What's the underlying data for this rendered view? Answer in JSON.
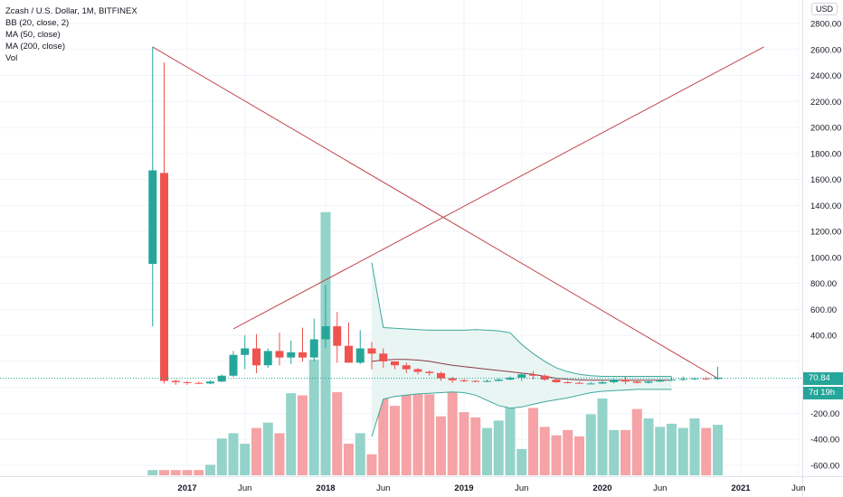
{
  "legend": {
    "symbol": "Zcash / U.S. Dollar, 1M, BITFINEX",
    "bb": "BB (20, close, 2)",
    "ma50": "MA (50, close)",
    "ma200": "MA (200, close)",
    "vol": "Vol"
  },
  "currency": "USD",
  "last_price": "70.84",
  "countdown": "7d 19h",
  "colors": {
    "up": "#26a69a",
    "down": "#ef5350",
    "vol_up": "#93d3ca",
    "vol_down": "#f5a3a6",
    "trendline": "#c2464e",
    "bb": "#3fa89c",
    "bb_fill": "#e8f5f3",
    "ma": "#8b3a44",
    "grid": "#f0f3fa",
    "price_line": "#26a69a"
  },
  "chart_data": {
    "type": "candlestick",
    "symbol": "ZECUSD",
    "exchange": "BITFINEX",
    "interval": "1M",
    "ylim": [
      -700,
      2900
    ],
    "y_ticks": [
      2800,
      2600,
      2400,
      2200,
      2000,
      1800,
      1600,
      1400,
      1200,
      1000,
      800,
      600,
      400,
      200,
      0,
      -200,
      -400,
      -600
    ],
    "y_tick_labels": [
      "2800.00",
      "2600.00",
      "2400.00",
      "2200.00",
      "2000.00",
      "1800.00",
      "1600.00",
      "1400.00",
      "1200.00",
      "1000.00",
      "800.00",
      "600.00",
      "400.00",
      "",
      "",
      "-200.00",
      "-400.00",
      "-600.00"
    ],
    "x_ticks": [
      "2017",
      "Jun",
      "2018",
      "Jun",
      "2019",
      "Jun",
      "2020",
      "Jun",
      "2021",
      "Jun"
    ],
    "x_tick_dates": [
      "2017-01",
      "2017-06",
      "2018-01",
      "2018-06",
      "2019-01",
      "2019-06",
      "2020-01",
      "2020-06",
      "2021-01",
      "2021-06"
    ],
    "months": [
      "2016-10",
      "2016-11",
      "2016-12",
      "2017-01",
      "2017-02",
      "2017-03",
      "2017-04",
      "2017-05",
      "2017-06",
      "2017-07",
      "2017-08",
      "2017-09",
      "2017-10",
      "2017-11",
      "2017-12",
      "2018-01",
      "2018-02",
      "2018-03",
      "2018-04",
      "2018-05",
      "2018-06",
      "2018-07",
      "2018-08",
      "2018-09",
      "2018-10",
      "2018-11",
      "2018-12",
      "2019-01",
      "2019-02",
      "2019-03",
      "2019-04",
      "2019-05",
      "2019-06",
      "2019-07",
      "2019-08",
      "2019-09",
      "2019-10",
      "2019-11",
      "2019-12",
      "2020-01",
      "2020-02",
      "2020-03",
      "2020-04",
      "2020-05",
      "2020-06",
      "2020-07",
      "2020-08",
      "2020-09",
      "2020-10",
      "2020-11"
    ],
    "open": [
      950,
      1650,
      50,
      40,
      35,
      30,
      45,
      90,
      250,
      300,
      170,
      280,
      230,
      270,
      230,
      370,
      470,
      320,
      190,
      300,
      260,
      200,
      170,
      140,
      120,
      110,
      70,
      55,
      50,
      45,
      50,
      60,
      75,
      100,
      90,
      60,
      40,
      35,
      30,
      30,
      40,
      60,
      45,
      35,
      45,
      55,
      60,
      65,
      70,
      65
    ],
    "high": [
      2620,
      2500,
      60,
      50,
      45,
      55,
      100,
      280,
      400,
      410,
      300,
      420,
      360,
      460,
      530,
      790,
      580,
      500,
      440,
      350,
      300,
      200,
      190,
      150,
      130,
      120,
      80,
      65,
      55,
      60,
      70,
      85,
      110,
      125,
      100,
      70,
      50,
      45,
      40,
      50,
      70,
      85,
      50,
      55,
      65,
      80,
      85,
      75,
      80,
      160
    ],
    "low": [
      470,
      30,
      20,
      20,
      25,
      25,
      40,
      80,
      140,
      110,
      150,
      170,
      180,
      200,
      200,
      300,
      190,
      190,
      180,
      140,
      150,
      140,
      110,
      100,
      90,
      50,
      35,
      40,
      40,
      40,
      45,
      55,
      50,
      60,
      50,
      35,
      30,
      30,
      25,
      25,
      30,
      25,
      30,
      30,
      40,
      50,
      50,
      55,
      55,
      60
    ],
    "close": [
      1670,
      50,
      40,
      35,
      30,
      45,
      90,
      250,
      300,
      170,
      280,
      230,
      270,
      230,
      370,
      470,
      320,
      190,
      300,
      260,
      200,
      170,
      140,
      120,
      110,
      70,
      55,
      50,
      45,
      50,
      60,
      75,
      100,
      90,
      60,
      40,
      35,
      30,
      30,
      40,
      60,
      45,
      35,
      45,
      55,
      60,
      65,
      70,
      65,
      75
    ],
    "volume": [
      5,
      5,
      5,
      5,
      5,
      10,
      35,
      40,
      30,
      45,
      50,
      40,
      78,
      76,
      110,
      250,
      79,
      30,
      40,
      20,
      99,
      66,
      91,
      80,
      77,
      56,
      100,
      60,
      55,
      45,
      52,
      73,
      25,
      64,
      46,
      38,
      43,
      37,
      58,
      73,
      43,
      43,
      63,
      54,
      46,
      49,
      45,
      54,
      45,
      48
    ],
    "bollinger": {
      "start_month": "2018-05",
      "upper": [
        960,
        460,
        455,
        450,
        445,
        440,
        440,
        440,
        440,
        445,
        440,
        435,
        420,
        330,
        260,
        200,
        150,
        120,
        100,
        90,
        85,
        85,
        85,
        85,
        85,
        85,
        85
      ],
      "middle": [
        200,
        210,
        215,
        215,
        210,
        200,
        185,
        170,
        160,
        150,
        140,
        130,
        120,
        110,
        100,
        85,
        70,
        62,
        58,
        55,
        55,
        55,
        55,
        55,
        55,
        55,
        55
      ],
      "lower": [
        -380,
        -90,
        -70,
        -60,
        -50,
        -45,
        -40,
        -35,
        -40,
        -60,
        -100,
        -140,
        -160,
        -150,
        -130,
        -110,
        -95,
        -80,
        -60,
        -40,
        -30,
        -25,
        -20,
        -15,
        -15,
        -15,
        -15
      ]
    },
    "trendlines": [
      {
        "from": {
          "month": "2016-10",
          "price": 2620
        },
        "to": {
          "month": "2020-11",
          "price": 70
        }
      },
      {
        "from": {
          "month": "2017-05",
          "price": 450
        },
        "to": {
          "month": "2021-03",
          "price": 2620
        }
      }
    ],
    "last_price": 70.84
  }
}
